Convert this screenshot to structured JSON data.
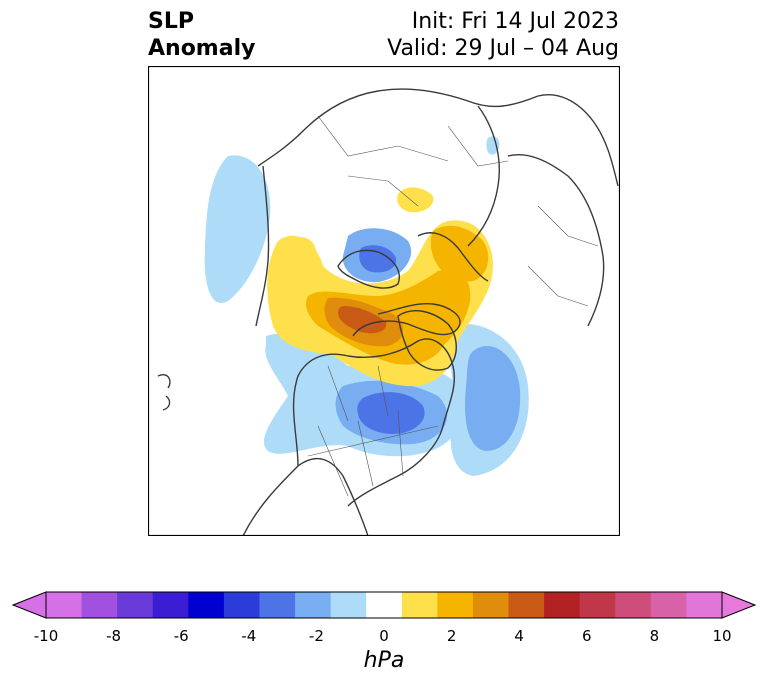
{
  "title": {
    "left_line1": "SLP",
    "left_line2": "Anomaly",
    "right_line1": "Init: Fri 14 Jul 2023",
    "right_line2": "Valid: 29 Jul – 04 Aug"
  },
  "colorbar": {
    "label": "hPa",
    "ticks": [
      "-10",
      "-8",
      "-6",
      "-4",
      "-2",
      "0",
      "2",
      "4",
      "6",
      "8",
      "10"
    ],
    "colors": [
      "#d670e6",
      "#a150e0",
      "#6a3ad8",
      "#3b1ed4",
      "#0000d0",
      "#2b3cd8",
      "#4c74e6",
      "#78adf2",
      "#aedcf8",
      "#ffffff",
      "#fde04c",
      "#f4b400",
      "#e08c0c",
      "#c95a16",
      "#b22222",
      "#c0374a",
      "#cf4d7a",
      "#d862a8",
      "#e276d8"
    ],
    "min_color": "#d670e6",
    "max_color": "#e879dc"
  },
  "map": {
    "projection": "north-polar-stereographic",
    "variable": "sea-level-pressure-anomaly"
  }
}
